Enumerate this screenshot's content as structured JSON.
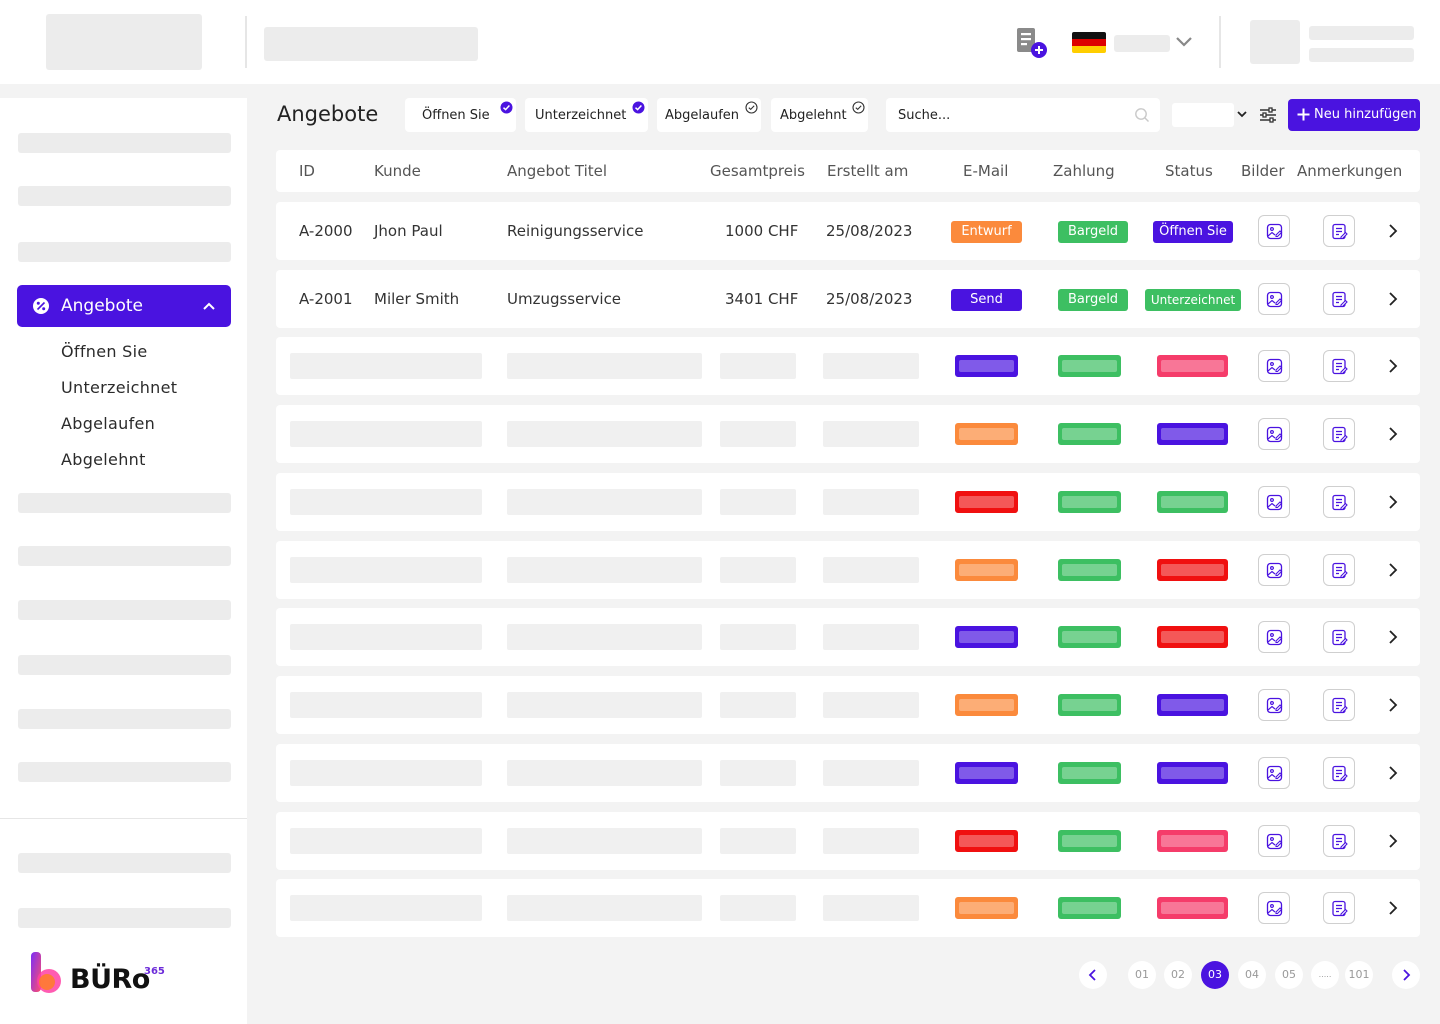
{
  "header": {},
  "sidebar": {
    "active_label": "Angebote",
    "sub_items": [
      "Öffnen Sie",
      "Unterzeichnet",
      "Abgelaufen",
      "Abgelehnt"
    ],
    "logo_text": "BÜRo",
    "logo_sup": "365"
  },
  "toolbar": {
    "title": "Angebote",
    "chips": [
      {
        "label": "Öffnen Sie",
        "checked": true
      },
      {
        "label": "Unterzeichnet",
        "checked": true
      },
      {
        "label": "Abgelaufen",
        "checked": false
      },
      {
        "label": "Abgelehnt",
        "checked": false
      }
    ],
    "search_placeholder": "Suche...",
    "add_label": "Neu hinzufügen"
  },
  "table": {
    "headers": {
      "id": "ID",
      "kunde": "Kunde",
      "titel": "Angebot Titel",
      "preis": "Gesamtpreis",
      "erstellt": "Erstellt am",
      "email": "E-Mail",
      "zahlung": "Zahlung",
      "status": "Status",
      "bilder": "Bilder",
      "anmerkungen": "Anmerkungen"
    },
    "rows": [
      {
        "id": "A-2000",
        "kunde": "Jhon Paul",
        "titel": "Reinigungsservice",
        "preis": "1000 CHF",
        "erstellt": "25/08/2023",
        "email": "Entwurf",
        "zahlung": "Bargeld",
        "status": "Öffnen Sie"
      },
      {
        "id": "A-2001",
        "kunde": "Miler Smith",
        "titel": "Umzugsservice",
        "preis": "3401 CHF",
        "erstellt": "25/08/2023",
        "email": "Send",
        "zahlung": "Bargeld",
        "status": "Unterzeichnet"
      }
    ]
  },
  "colors": {
    "accent": "#4a13e0",
    "green": "#3dbf62",
    "orange": "#fb8a3c",
    "red": "#f01010",
    "pink": "#f53c6a"
  },
  "pagination": {
    "pages": [
      "01",
      "02",
      "03",
      "04",
      "05",
      ".....",
      "101"
    ],
    "active": "03"
  }
}
